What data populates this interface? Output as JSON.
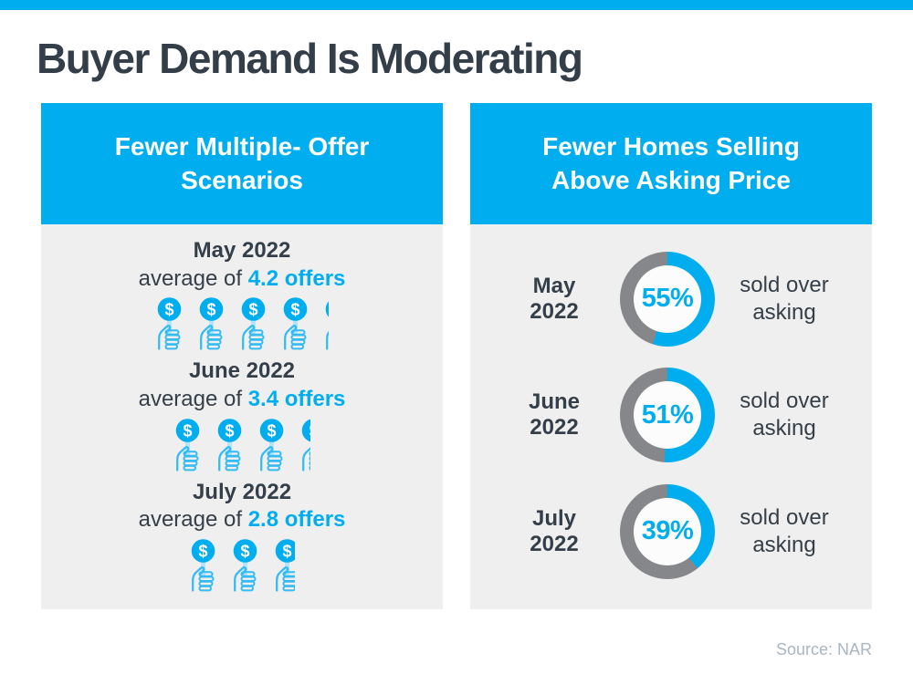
{
  "page": {
    "title": "Buyer Demand Is Moderating",
    "source": "Source: NAR"
  },
  "colors": {
    "primary_blue": "#00aeef",
    "icon_outline_blue": "#35bbf1",
    "stem_light_blue": "#b5e4fa",
    "dark_text": "#353f49",
    "donut_gray": "#85878a",
    "panel_background": "#efeff0",
    "source_text": "#a9b6c2"
  },
  "icons": {
    "offer_icon": "dollar-thumbs-up-icon",
    "dollar_symbol": "$"
  },
  "chart_data": [
    {
      "type": "pictogram",
      "title": "Fewer Multiple-\nOffer Scenarios",
      "unit": "offers per home sold",
      "icon": "dollar-thumbs-up",
      "categories": [
        "May 2022",
        "June 2022",
        "July 2022"
      ],
      "values": [
        4.2,
        3.4,
        2.8
      ],
      "rows": [
        {
          "month": "May 2022",
          "prefix": "average of",
          "value": 4.2,
          "value_label": "4.2 offers"
        },
        {
          "month": "June 2022",
          "prefix": "average of",
          "value": 3.4,
          "value_label": "3.4 offers"
        },
        {
          "month": "July 2022",
          "prefix": "average of",
          "value": 2.8,
          "value_label": "2.8 offers"
        }
      ]
    },
    {
      "type": "donut",
      "title": "Fewer Homes Selling\nAbove Asking Price",
      "unit": "percent sold over asking",
      "start_angle": "top",
      "direction": "clockwise",
      "categories": [
        "May 2022",
        "June 2022",
        "July 2022"
      ],
      "values": [
        55,
        51,
        39
      ],
      "rows": [
        {
          "month": "May 2022",
          "value": 55,
          "value_label": "55%",
          "suffix": "sold over asking"
        },
        {
          "month": "June 2022",
          "value": 51,
          "value_label": "51%",
          "suffix": "sold over asking"
        },
        {
          "month": "July 2022",
          "value": 39,
          "value_label": "39%",
          "suffix": "sold over asking"
        }
      ]
    }
  ]
}
